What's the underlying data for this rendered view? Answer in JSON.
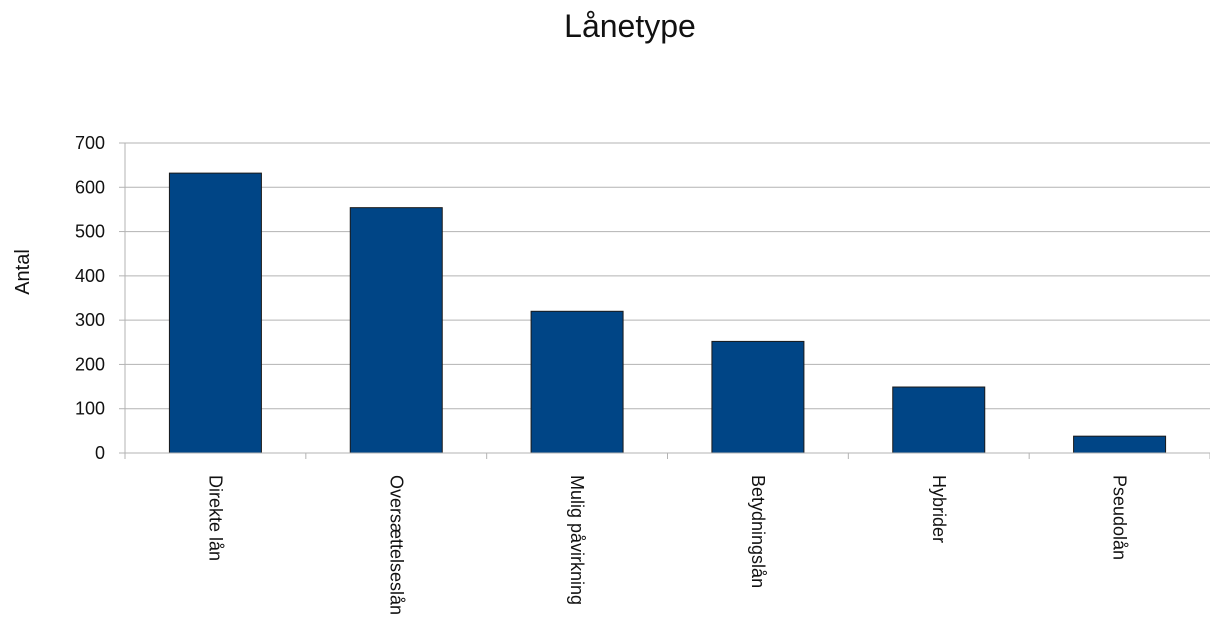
{
  "chart_data": {
    "type": "bar",
    "title": "Lånetype",
    "xlabel": "",
    "ylabel": "Antal",
    "categories": [
      "Direkte lån",
      "Oversættelseslån",
      "Mulig påvirkning",
      "Betydningslån",
      "Hybrider",
      "Pseudolån"
    ],
    "values": [
      632,
      554,
      320,
      252,
      149,
      38
    ],
    "ylim": [
      0,
      700
    ],
    "yticks": [
      0,
      100,
      200,
      300,
      400,
      500,
      600,
      700
    ],
    "grid": true,
    "legend": "none",
    "bar_color": "#004586"
  }
}
